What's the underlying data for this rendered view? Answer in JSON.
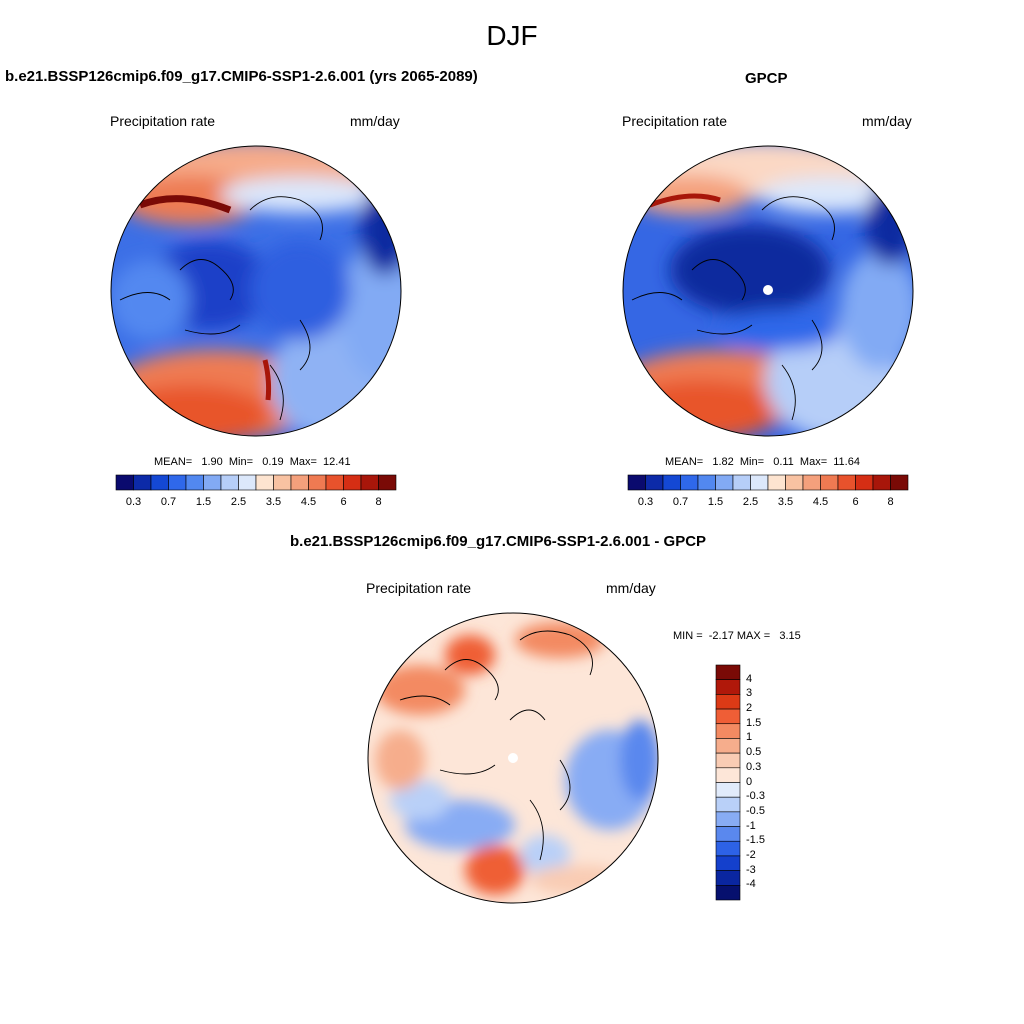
{
  "season_title": "DJF",
  "panels": [
    {
      "title": "b.e21.BSSP126cmip6.f09_g17.CMIP6-SSP1-2.6.001 (yrs 2065-2089)",
      "variable_label": "Precipitation rate",
      "units_label": "mm/day",
      "stats": "MEAN=   1.90  Min=   0.19  Max=  12.41",
      "colorbar_ticks": [
        "0.3",
        "0.7",
        "1.5",
        "2.5",
        "3.5",
        "4.5",
        "6",
        "8"
      ]
    },
    {
      "title": "GPCP",
      "variable_label": "Precipitation rate",
      "units_label": "mm/day",
      "stats": "MEAN=   1.82  Min=   0.11  Max=  11.64",
      "colorbar_ticks": [
        "0.3",
        "0.7",
        "1.5",
        "2.5",
        "3.5",
        "4.5",
        "6",
        "8"
      ]
    },
    {
      "title": "b.e21.BSSP126cmip6.f09_g17.CMIP6-SSP1-2.6.001 - GPCP",
      "variable_label": "Precipitation rate",
      "units_label": "mm/day",
      "stats": "MIN =  -2.17 MAX =   3.15",
      "colorbar_ticks": [
        "4",
        "3",
        "2",
        "1.5",
        "1",
        "0.5",
        "0.3",
        "0",
        "-0.3",
        "-0.5",
        "-1",
        "-1.5",
        "-2",
        "-3",
        "-4"
      ]
    }
  ],
  "colors": {
    "abs_colorbar": [
      "#0a0a6e",
      "#0c2aa8",
      "#1448d4",
      "#2f68ea",
      "#5288f0",
      "#82aaf4",
      "#b6cef8",
      "#dce8fb",
      "#fde4d0",
      "#f8c2a2",
      "#f4a07c",
      "#ef7a52",
      "#e8522c",
      "#d52e14",
      "#a8160a",
      "#7a0a06"
    ],
    "diff_colorbar": [
      "#7a0a06",
      "#b0180a",
      "#dc3a16",
      "#ef5e36",
      "#f38a62",
      "#f6ad8c",
      "#f9ccb4",
      "#fde6d8",
      "#e1ebfb",
      "#b9d0f8",
      "#88acf4",
      "#5a88ee",
      "#2d62e6",
      "#1440cc",
      "#0a26a0",
      "#06106e"
    ]
  }
}
